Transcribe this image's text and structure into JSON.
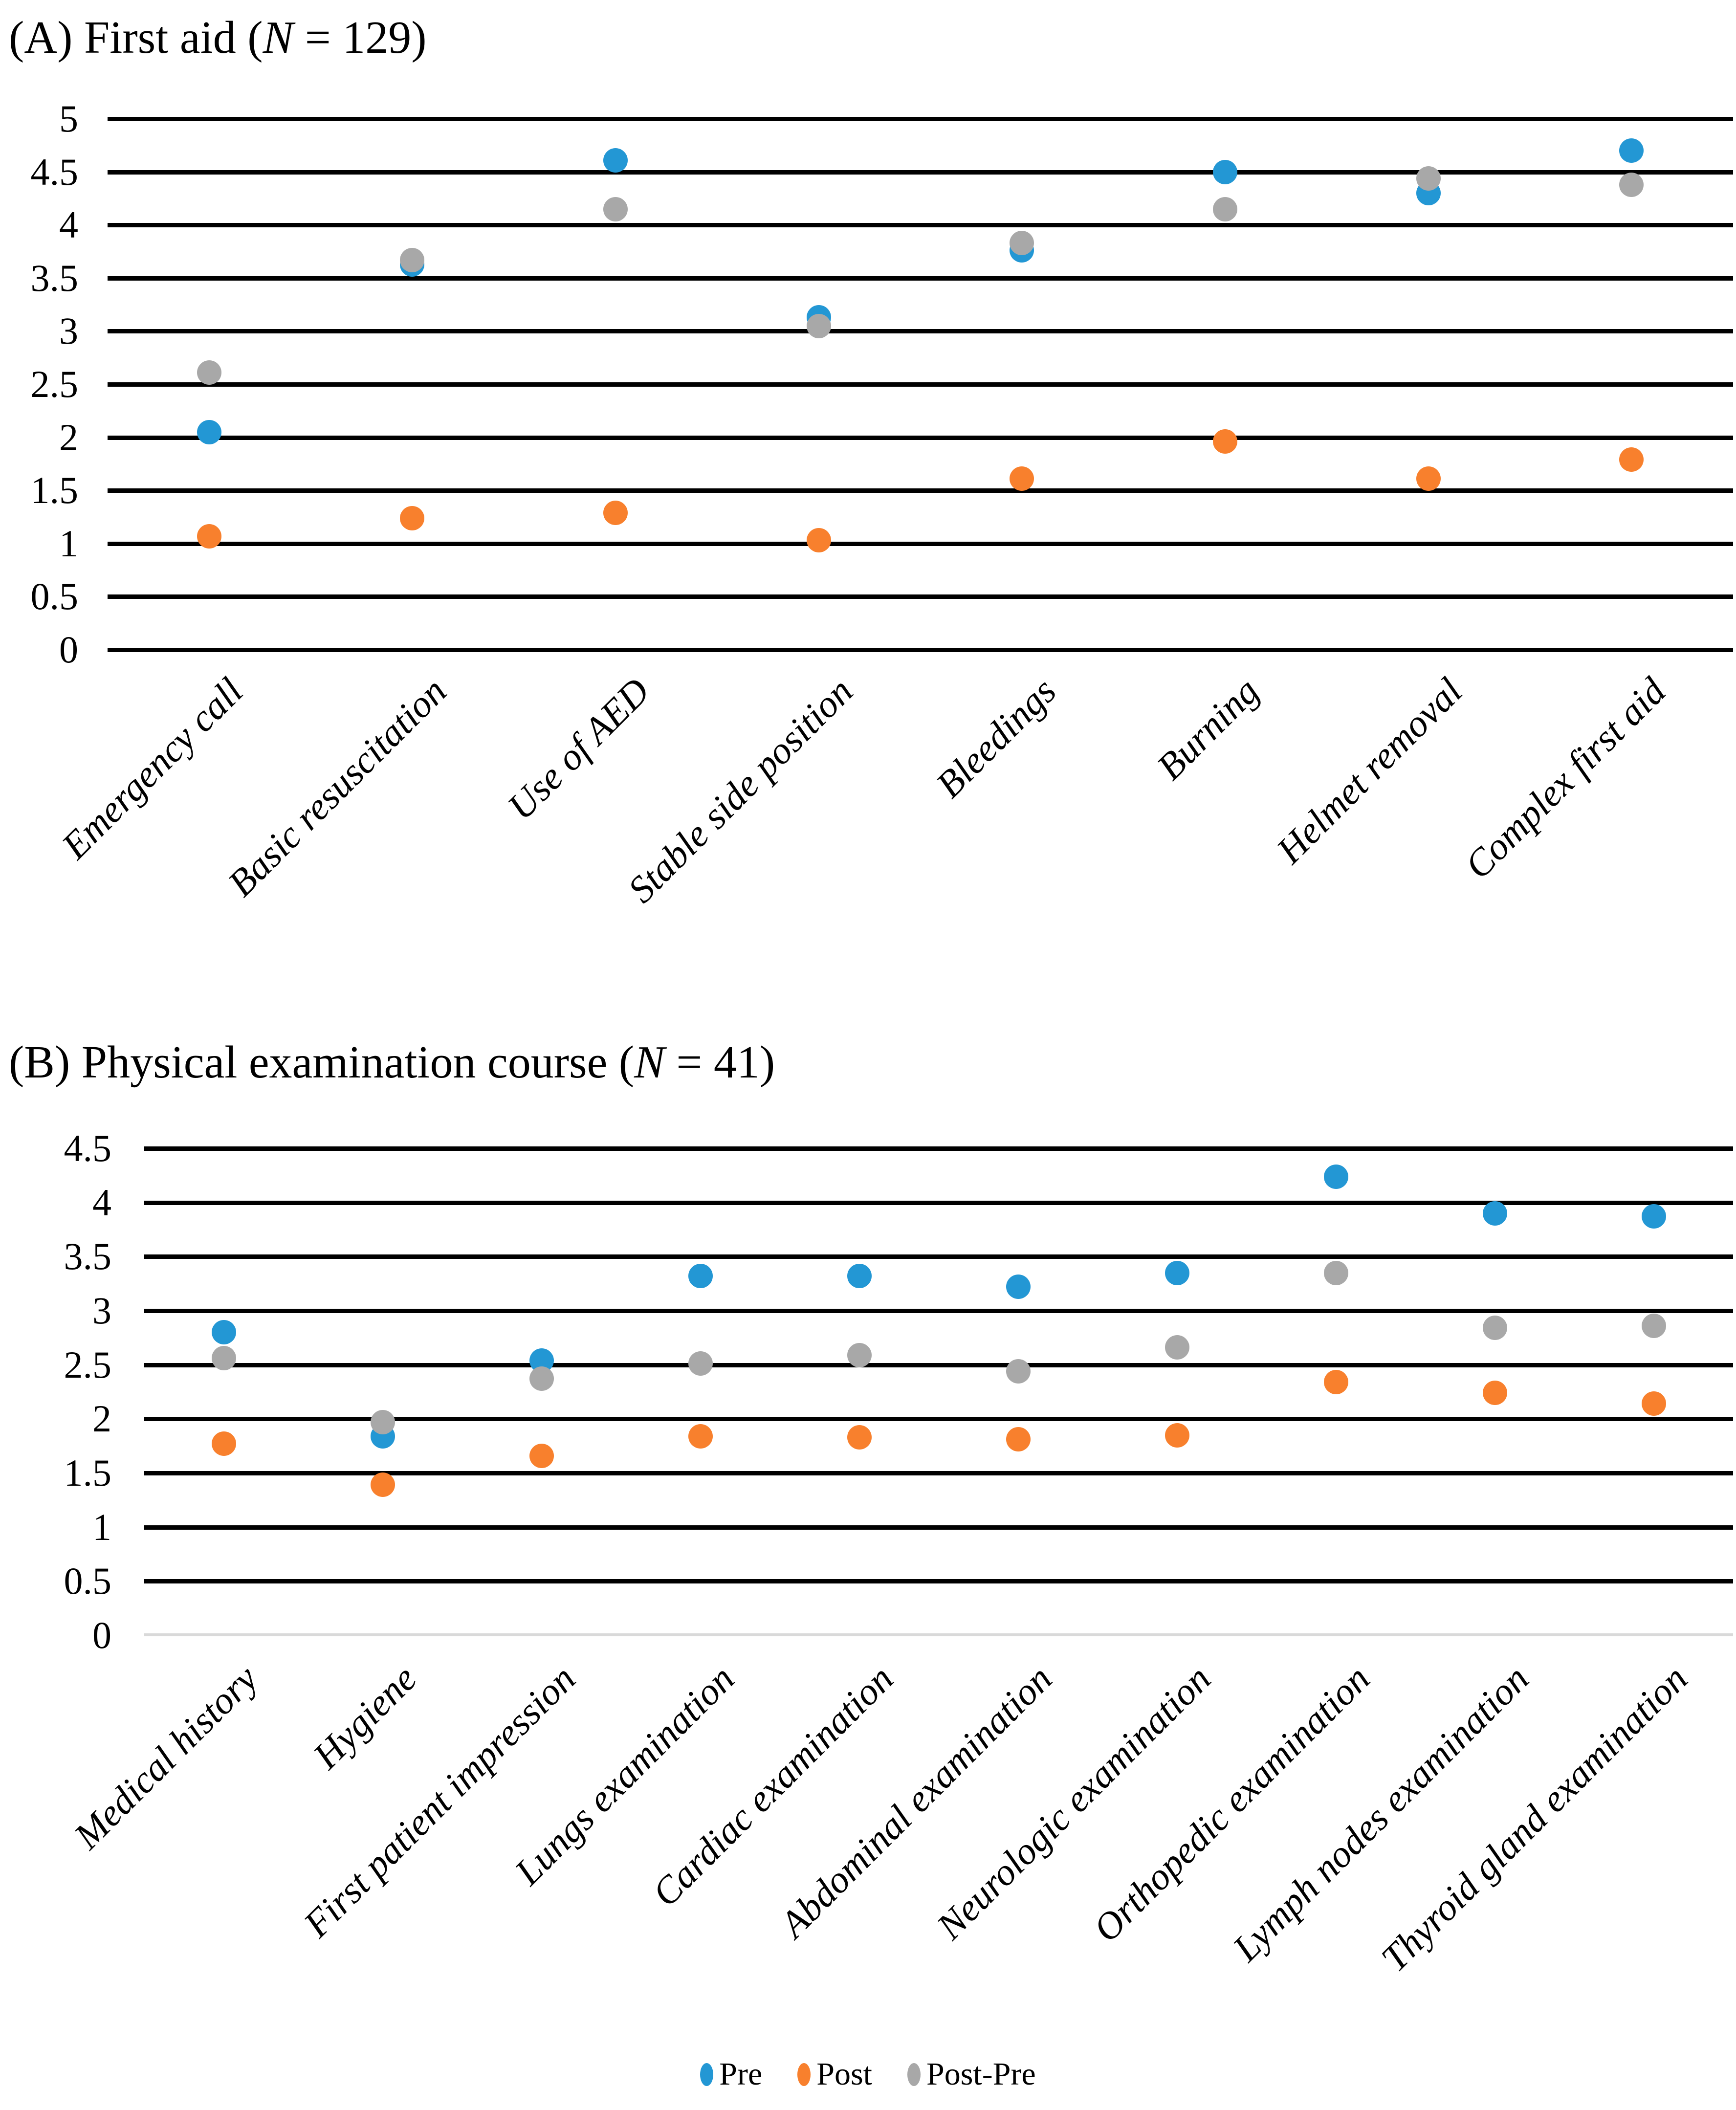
{
  "panel_a": {
    "title_prefix": "(A) First aid (",
    "title_n": "N",
    "title_suffix": " = 129)"
  },
  "panel_b": {
    "title_prefix": "(B) Physical examination course (",
    "title_n": "N",
    "title_suffix": " = 41)"
  },
  "legend": {
    "items": [
      {
        "label": "Pre",
        "color": "#2397D4"
      },
      {
        "label": "Post",
        "color": "#F8802D"
      },
      {
        "label": "Post-Pre",
        "color": "#A8A8A8"
      }
    ]
  },
  "chart_data": [
    {
      "id": "panel-a",
      "type": "scatter",
      "title": "(A) First aid (N = 129)",
      "xlabel": "",
      "ylabel": "",
      "ylim": [
        0,
        5
      ],
      "ytick_step": 0.5,
      "ytick_labels": [
        "5",
        "4.5",
        "4",
        "3.5",
        "3",
        "2.5",
        "2",
        "1.5",
        "1",
        "0.5",
        "0"
      ],
      "grid": "horizontal",
      "legend_position": "shared-bottom",
      "categories": [
        "Emergency call",
        "Basic resuscitation",
        "Use of AED",
        "Stable side position",
        "Bleedings",
        "Burning",
        "Helmet removal",
        "Complex first aid"
      ],
      "series": [
        {
          "name": "Pre",
          "color": "#2397D4",
          "values": [
            2.05,
            3.63,
            4.61,
            3.13,
            3.76,
            4.5,
            4.3,
            4.7
          ]
        },
        {
          "name": "Post",
          "color": "#F8802D",
          "values": [
            1.07,
            1.24,
            1.29,
            1.03,
            1.61,
            1.96,
            1.61,
            1.79
          ]
        },
        {
          "name": "Post-Pre",
          "color": "#A8A8A8",
          "values": [
            2.61,
            3.67,
            4.15,
            3.05,
            3.83,
            4.15,
            4.44,
            4.38
          ]
        }
      ]
    },
    {
      "id": "panel-b",
      "type": "scatter",
      "title": "(B) Physical examination course (N = 41)",
      "xlabel": "",
      "ylabel": "",
      "ylim": [
        0,
        4.5
      ],
      "ytick_step": 0.5,
      "ytick_labels": [
        "4.5",
        "4",
        "3.5",
        "3",
        "2.5",
        "2",
        "1.5",
        "1",
        "0.5",
        "0"
      ],
      "grid": "horizontal",
      "legend_position": "shared-bottom",
      "categories": [
        "Medical history",
        "Hygiene",
        "First patient impression",
        "Lungs examination",
        "Cardiac examination",
        "Abdominal examination",
        "Neurologic examination",
        "Orthopedic examination",
        "Lymph nodes examination",
        "Thyroid gland examination"
      ],
      "series": [
        {
          "name": "Pre",
          "color": "#2397D4",
          "values": [
            2.8,
            1.84,
            2.54,
            3.32,
            3.32,
            3.22,
            3.35,
            4.24,
            3.9,
            3.87
          ]
        },
        {
          "name": "Post",
          "color": "#F8802D",
          "values": [
            1.77,
            1.39,
            1.66,
            1.84,
            1.83,
            1.81,
            1.85,
            2.34,
            2.24,
            2.14
          ]
        },
        {
          "name": "Post-Pre",
          "color": "#A8A8A8",
          "values": [
            2.56,
            1.97,
            2.37,
            2.51,
            2.59,
            2.44,
            2.66,
            3.35,
            2.84,
            2.86
          ]
        }
      ]
    }
  ]
}
